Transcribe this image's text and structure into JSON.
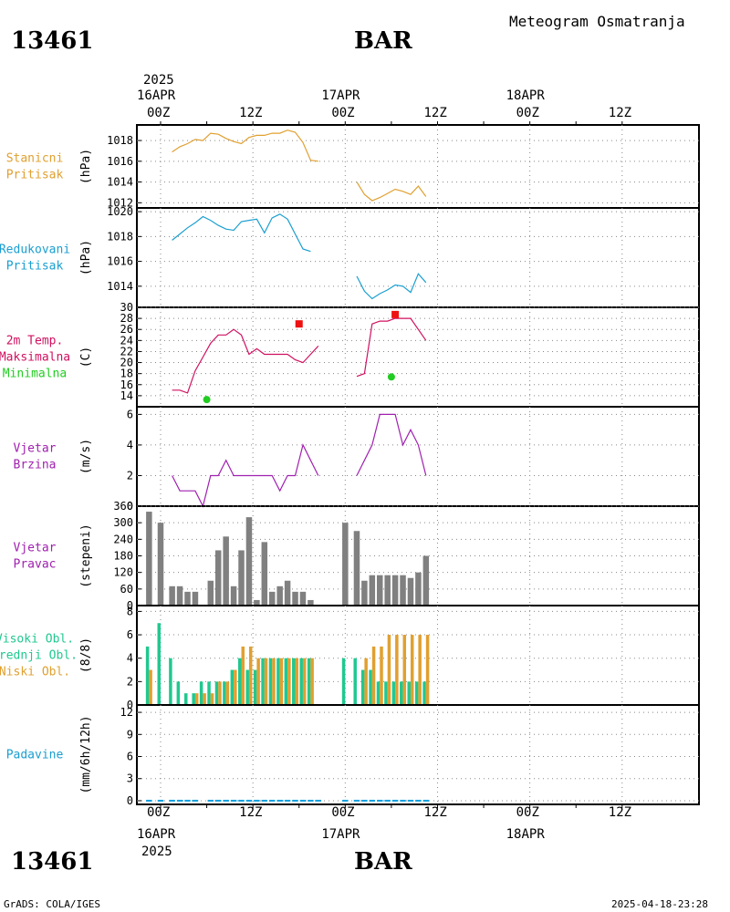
{
  "header": {
    "station_id": "13461",
    "station_name": "BAR",
    "title": "Meteogram Osmatranja"
  },
  "footer": {
    "station_id": "13461",
    "station_name": "BAR",
    "credit": "GrADS: COLA/IGES",
    "timestamp": "2025-04-18-23:28"
  },
  "time_axis": {
    "top_year": "2025",
    "top_dates": [
      "16APR",
      "17APR",
      "18APR"
    ],
    "bottom_year": "2025",
    "bottom_dates": [
      "16APR",
      "17APR",
      "18APR"
    ],
    "hour_labels": [
      "00Z",
      "12Z",
      "00Z",
      "12Z",
      "00Z",
      "12Z"
    ],
    "hour_positions": [
      0,
      12,
      24,
      36,
      48,
      60
    ],
    "range_hours": [
      -1.5,
      35
    ]
  },
  "colors": {
    "pressure": "#e0a030",
    "reduced_pressure": "#1a9fd0",
    "temperature": "#d01060",
    "tmax": "#ee1111",
    "tmin": "#22cc22",
    "wind": "#a020b0",
    "direction_bars": "#808080",
    "high_cloud": "#20c890",
    "mid_cloud": "#20c890",
    "low_cloud": "#e0a030",
    "precip": "#10a0e0",
    "title_orange": "#e0a030",
    "title_cyan": "#1a9fd0"
  },
  "chart_data": [
    {
      "type": "line",
      "panel_title": [
        "Stanicni",
        "Pritisak"
      ],
      "ylabel": "(hPa)",
      "ylim": [
        1011.5,
        1019.5
      ],
      "yticks": [
        1012,
        1014,
        1016,
        1018
      ],
      "grid": true,
      "series": [
        {
          "name": "Stanicni Pritisak",
          "color_key": "pressure",
          "x": [
            1.5,
            2.5,
            3.5,
            4.5,
            5.5,
            6.5,
            7.5,
            8.5,
            9.5,
            10.5,
            11.5,
            12.5,
            13.5,
            14.5,
            15.5,
            16.5,
            17.5,
            18.5,
            19.5,
            20.5,
            21.5
          ],
          "y": [
            1016.9,
            1017.4,
            1017.7,
            1018.1,
            1018.0,
            1018.7,
            1018.6,
            1018.2,
            1017.9,
            1017.7,
            1018.3,
            1018.5,
            1018.5,
            1018.7,
            1018.7,
            1019.0,
            1018.8,
            1017.8,
            1016.1,
            1016.0,
            null
          ]
        },
        {
          "name": "Stanicni Pritisak",
          "color_key": "pressure",
          "x": [
            25.5,
            26.5,
            27.5,
            28.5,
            29.5,
            30.5,
            31.5,
            32.5,
            33.5,
            34.5
          ],
          "y": [
            1014.0,
            1012.8,
            1012.2,
            1012.5,
            1012.9,
            1013.3,
            1013.1,
            1012.8,
            1013.6,
            1012.6
          ]
        }
      ]
    },
    {
      "type": "line",
      "panel_title": [
        "Redukovani",
        "Pritisak"
      ],
      "ylabel": "(hPa)",
      "ylim": [
        1012.3,
        1020.3
      ],
      "yticks": [
        1014,
        1016,
        1018,
        1020
      ],
      "grid": true,
      "series": [
        {
          "name": "Redukovani Pritisak",
          "color_key": "reduced_pressure",
          "x": [
            1.5,
            2.5,
            3.5,
            4.5,
            5.5,
            6.5,
            7.5,
            8.5,
            9.5,
            10.5,
            11.5,
            12.5,
            13.5,
            14.5,
            15.5,
            16.5,
            17.5,
            18.5,
            19.5,
            20.5
          ],
          "y": [
            1017.7,
            1018.2,
            1018.7,
            1019.1,
            1019.6,
            1019.3,
            1018.9,
            1018.6,
            1018.5,
            1019.2,
            1019.3,
            1019.4,
            1018.3,
            1019.5,
            1019.8,
            1019.4,
            1018.2,
            1017.0,
            1016.8,
            null
          ]
        },
        {
          "name": "Redukovani Pritisak",
          "color_key": "reduced_pressure",
          "x": [
            25.5,
            26.5,
            27.5,
            28.5,
            29.5,
            30.5,
            31.5,
            32.5,
            33.5,
            34.5
          ],
          "y": [
            1014.8,
            1013.6,
            1013.0,
            1013.4,
            1013.7,
            1014.1,
            1014.0,
            1013.5,
            1015.0,
            1014.3
          ]
        }
      ]
    },
    {
      "type": "line",
      "panel_title": [
        "2m Temp.",
        "Maksimalna",
        "Minimalna"
      ],
      "ylabel": "(C)",
      "ylim": [
        12,
        30
      ],
      "yticks": [
        14,
        16,
        18,
        20,
        22,
        24,
        26,
        28,
        30
      ],
      "grid": true,
      "series": [
        {
          "name": "2m Temp.",
          "color_key": "temperature",
          "x": [
            1.5,
            2.5,
            3.5,
            4.5,
            5.5,
            6.5,
            7.5,
            8.5,
            9.5,
            10.5,
            11.5,
            12.5,
            13.5,
            14.5,
            15.5,
            16.5,
            17.5,
            18.5,
            19.5,
            20.5
          ],
          "y": [
            15.0,
            15.0,
            14.5,
            18.5,
            21.0,
            23.5,
            25.0,
            25.0,
            26.0,
            25.0,
            21.5,
            22.5,
            21.5,
            21.5,
            21.5,
            21.5,
            20.5,
            20.0,
            21.5,
            23.0
          ]
        },
        {
          "name": "2m Temp.",
          "color_key": "temperature",
          "x": [
            25.5,
            26.5,
            27.5,
            28.5,
            29.5,
            30.5,
            31.5,
            32.5,
            33.5,
            34.5
          ],
          "y": [
            17.5,
            18.0,
            27.0,
            27.5,
            27.5,
            28.0,
            28.0,
            28.0,
            26.0,
            24.0
          ]
        }
      ],
      "markers": [
        {
          "name": "Maksimalna",
          "color_key": "tmax",
          "shape": "square",
          "x": [
            18.0,
            30.5
          ],
          "y": [
            27.0,
            28.7
          ]
        },
        {
          "name": "Minimalna",
          "color_key": "tmin",
          "shape": "circle",
          "x": [
            6.0,
            30.0
          ],
          "y": [
            13.3,
            17.4
          ]
        }
      ]
    },
    {
      "type": "line",
      "panel_title": [
        "Vjetar",
        "Brzina"
      ],
      "ylabel": "(m/s)",
      "ylim": [
        0,
        6.5
      ],
      "yticks": [
        0,
        2,
        4,
        6
      ],
      "grid": true,
      "series": [
        {
          "name": "Vjetar Brzina",
          "color_key": "wind",
          "x": [
            1.5,
            2.5,
            3.5,
            4.5,
            5.5,
            6.5,
            7.5,
            8.5,
            9.5,
            10.5,
            11.5,
            12.5,
            13.5,
            14.5,
            15.5,
            16.5,
            17.5,
            18.5,
            19.5,
            20.5
          ],
          "y": [
            2,
            1,
            1,
            1,
            0,
            2,
            2,
            3,
            2,
            2,
            2,
            2,
            2,
            2,
            1,
            2,
            2,
            4,
            3,
            2
          ]
        },
        {
          "name": "Vjetar Brzina",
          "color_key": "wind",
          "x": [
            25.5,
            26.5,
            27.5,
            28.5,
            29.5,
            30.5,
            31.5,
            32.5,
            33.5,
            34.5
          ],
          "y": [
            2,
            3,
            4,
            6,
            6,
            6,
            4,
            5,
            4,
            2
          ]
        }
      ]
    },
    {
      "type": "bar",
      "panel_title": [
        "Vjetar",
        "Pravac"
      ],
      "ylabel": "(stepeni)",
      "ylim": [
        0,
        360
      ],
      "yticks": [
        0,
        60,
        120,
        180,
        240,
        300,
        360
      ],
      "grid": true,
      "series": [
        {
          "name": "Vjetar Pravac",
          "color_key": "direction_bars",
          "x": [
            -1.5,
            0,
            1.5,
            2.5,
            3.5,
            4.5,
            6.5,
            7.5,
            8.5,
            9.5,
            10.5,
            11.5,
            12.5,
            13.5,
            14.5,
            15.5,
            16.5,
            17.5,
            18.5,
            19.5,
            20.5,
            24.0,
            25.5,
            26.5,
            27.5,
            28.5,
            29.5,
            30.5,
            31.5,
            32.5,
            33.5,
            34.5
          ],
          "y": [
            340,
            300,
            70,
            70,
            50,
            50,
            90,
            200,
            250,
            70,
            200,
            320,
            20,
            230,
            50,
            70,
            90,
            50,
            50,
            20,
            0,
            300,
            270,
            90,
            110,
            110,
            110,
            110,
            110,
            100,
            120,
            180
          ]
        }
      ]
    },
    {
      "type": "bar",
      "panel_title": [
        "Visoki Obl.",
        "Srednji Obl.",
        "Niski Obl."
      ],
      "ylabel": "(8/8)",
      "ylim": [
        0,
        8.5
      ],
      "yticks": [
        0,
        2,
        4,
        6,
        8
      ],
      "grid": true,
      "series": [
        {
          "name": "Srednji Obl.",
          "color_key": "mid_cloud",
          "x": [
            -1.5,
            0,
            1.5,
            2.5,
            3.5,
            4.5,
            5.5,
            6.5,
            7.5,
            8.5,
            9.5,
            10.5,
            11.5,
            12.5,
            13.5,
            14.5,
            15.5,
            16.5,
            17.5,
            18.5,
            19.5,
            24.0,
            25.5,
            26.5,
            27.5,
            28.5,
            29.5,
            30.5,
            31.5,
            32.5,
            33.5,
            34.5
          ],
          "y": [
            5,
            7,
            4,
            2,
            1,
            1,
            2,
            2,
            2,
            2,
            3,
            4,
            3,
            3,
            4,
            4,
            4,
            4,
            4,
            4,
            4,
            4,
            4,
            3,
            3,
            2,
            2,
            2,
            2,
            2,
            2,
            2
          ]
        },
        {
          "name": "Niski Obl.",
          "color_key": "low_cloud",
          "x": [
            -1.5,
            4.5,
            5.5,
            6.5,
            7.5,
            8.5,
            9.5,
            10.5,
            11.5,
            12.5,
            13.5,
            14.5,
            15.5,
            16.5,
            17.5,
            18.5,
            19.5,
            26.5,
            27.5,
            28.5,
            29.5,
            30.5,
            31.5,
            32.5,
            33.5,
            34.5
          ],
          "y": [
            3,
            1,
            1,
            1,
            2,
            2,
            3,
            5,
            5,
            4,
            4,
            4,
            4,
            4,
            4,
            4,
            4,
            4,
            5,
            5,
            6,
            6,
            6,
            6,
            6,
            6
          ]
        }
      ]
    },
    {
      "type": "bar",
      "panel_title": [
        "Padavine"
      ],
      "ylabel": "(mm/6h/12h)",
      "ylim": [
        -0.5,
        13
      ],
      "yticks": [
        0,
        3,
        6,
        9,
        12
      ],
      "grid": true,
      "series": [
        {
          "name": "Padavine",
          "color_key": "precip",
          "x": [
            -1.5,
            0,
            1.5,
            2.5,
            3.5,
            4.5,
            6.5,
            7.5,
            8.5,
            9.5,
            10.5,
            11.5,
            12.5,
            13.5,
            14.5,
            15.5,
            16.5,
            17.5,
            18.5,
            19.5,
            20.5,
            24.0,
            25.5,
            26.5,
            27.5,
            28.5,
            29.5,
            30.5,
            31.5,
            32.5,
            33.5,
            34.5
          ],
          "y": [
            0,
            0,
            0,
            0,
            0,
            0,
            0,
            0,
            0,
            0,
            0,
            0,
            0,
            0,
            0,
            0,
            0,
            0,
            0,
            0,
            0,
            0,
            0,
            0,
            0,
            0,
            0,
            0,
            0,
            0,
            0,
            0
          ]
        }
      ]
    }
  ]
}
